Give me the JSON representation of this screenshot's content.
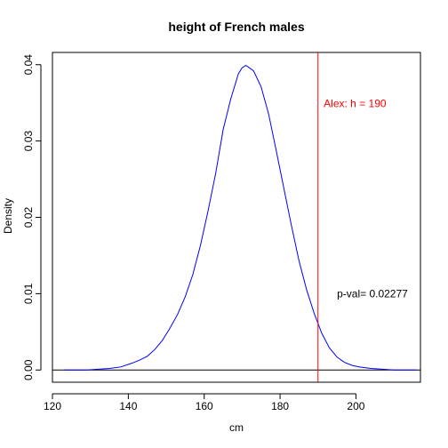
{
  "chart_data": {
    "type": "line",
    "title": "height of French males",
    "xlabel": "cm",
    "ylabel": "Density",
    "xlim": [
      120,
      217
    ],
    "ylim": [
      -0.0016,
      0.0416
    ],
    "x_ticks": [
      120,
      140,
      160,
      180,
      200
    ],
    "y_ticks": [
      0.0,
      0.01,
      0.02,
      0.03,
      0.04
    ],
    "x_tick_labels": [
      "120",
      "140",
      "160",
      "180",
      "200"
    ],
    "y_tick_labels": [
      "0.00",
      "0.01",
      "0.02",
      "0.03",
      "0.04"
    ],
    "grid": false,
    "series": [
      {
        "color": "#0000ff",
        "x": [
          123,
          126,
          129,
          132,
          135,
          138,
          141,
          143,
          145,
          147,
          149,
          151,
          153,
          155,
          157,
          159,
          161,
          163,
          165,
          167,
          169,
          170,
          171,
          173,
          175,
          177,
          179,
          181,
          183,
          185,
          187,
          189,
          191,
          193,
          195,
          197,
          199,
          201,
          204,
          207,
          210,
          213,
          216
        ],
        "y": [
          0.0,
          0.0,
          0.0,
          0.0001,
          0.0002,
          0.0004,
          0.0009,
          0.0013,
          0.0018,
          0.0027,
          0.0039,
          0.0055,
          0.0073,
          0.0096,
          0.0125,
          0.0163,
          0.0208,
          0.0257,
          0.0315,
          0.0355,
          0.0388,
          0.0396,
          0.0399,
          0.0392,
          0.0371,
          0.0335,
          0.0287,
          0.0238,
          0.0189,
          0.0143,
          0.0105,
          0.0074,
          0.0048,
          0.0029,
          0.0017,
          0.001,
          0.0006,
          0.0004,
          0.0002,
          0.0001,
          0.0,
          0.0,
          0.0
        ]
      }
    ],
    "hlines": [
      {
        "y": 0,
        "color": "#000000"
      }
    ],
    "vlines": [
      {
        "x": 190,
        "color": "#ff0000"
      }
    ],
    "annotations": [
      {
        "text": "Alex: h = 190",
        "x": 191.5,
        "y": 0.0349,
        "color": "#ff0000"
      },
      {
        "text": "p-val= 0.02277",
        "x": 195,
        "y": 0.01,
        "color": "#000000"
      }
    ]
  }
}
